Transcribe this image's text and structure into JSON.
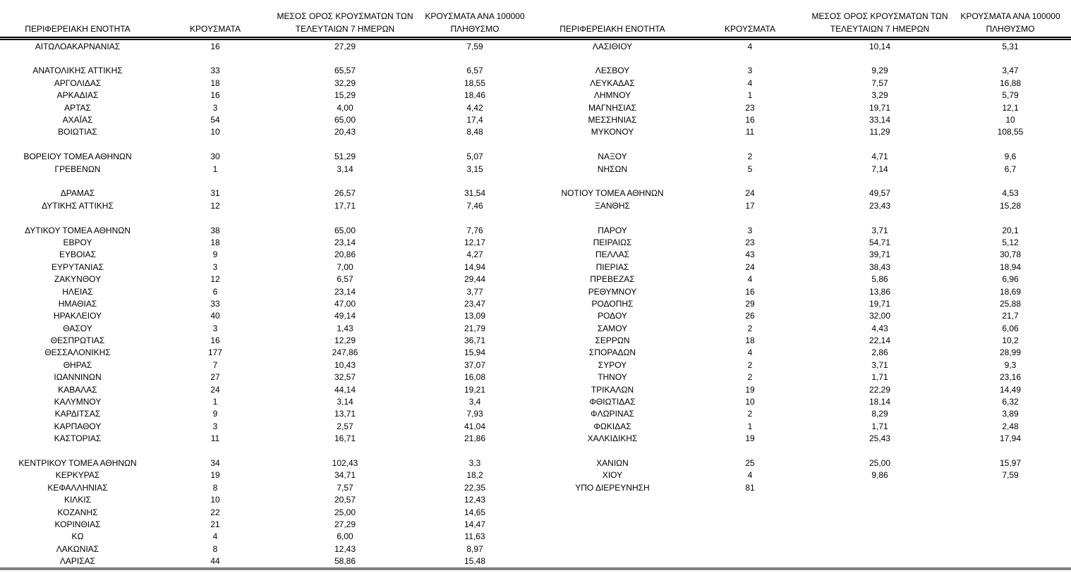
{
  "table": {
    "columns": [
      "ΠΕΡΙΦΕΡΕΙΑΚΗ ΕΝΟΤΗΤΑ",
      "ΚΡΟΥΣΜΑΤΑ",
      "ΜΕΣΟΣ ΟΡΟΣ ΚΡΟΥΣΜΑΤΩΝ ΤΩΝ ΤΕΛΕΥΤΑΙΩΝ 7 ΗΜΕΡΩΝ",
      "ΚΡΟΥΣΜΑΤΑ ΑΝΑ 100000 ΠΛΗΘΥΣΜΟ"
    ],
    "rows": [
      [
        "ΑΙΤΩΛΟΑΚΑΡΝΑΝΙΑΣ",
        "16",
        "27,29",
        "7,59",
        "ΛΑΣΙΘΙΟΥ",
        "4",
        "10,14",
        "5,31"
      ],
      [
        "",
        "",
        "",
        "",
        "",
        "",
        "",
        ""
      ],
      [
        "ΑΝΑΤΟΛΙΚΗΣ ΑΤΤΙΚΗΣ",
        "33",
        "65,57",
        "6,57",
        "ΛΕΣΒΟΥ",
        "3",
        "9,29",
        "3,47"
      ],
      [
        "ΑΡΓΟΛΙΔΑΣ",
        "18",
        "32,29",
        "18,55",
        "ΛΕΥΚΑΔΑΣ",
        "4",
        "7,57",
        "16,88"
      ],
      [
        "ΑΡΚΑΔΙΑΣ",
        "16",
        "15,29",
        "18,46",
        "ΛΗΜΝΟΥ",
        "1",
        "3,29",
        "5,79"
      ],
      [
        "ΑΡΤΑΣ",
        "3",
        "4,00",
        "4,42",
        "ΜΑΓΝΗΣΙΑΣ",
        "23",
        "19,71",
        "12,1"
      ],
      [
        "ΑΧΑΪΑΣ",
        "54",
        "65,00",
        "17,4",
        "ΜΕΣΣΗΝΙΑΣ",
        "16",
        "33,14",
        "10"
      ],
      [
        "ΒΟΙΩΤΙΑΣ",
        "10",
        "20,43",
        "8,48",
        "ΜΥΚΟΝΟΥ",
        "11",
        "11,29",
        "108,55"
      ],
      [
        "",
        "",
        "",
        "",
        "",
        "",
        "",
        ""
      ],
      [
        "ΒΟΡΕΙΟΥ ΤΟΜΕΑ ΑΘΗΝΩΝ",
        "30",
        "51,29",
        "5,07",
        "ΝΑΞΟΥ",
        "2",
        "4,71",
        "9,6"
      ],
      [
        "ΓΡΕΒΕΝΩΝ",
        "1",
        "3,14",
        "3,15",
        "ΝΗΣΩΝ",
        "5",
        "7,14",
        "6,7"
      ],
      [
        "",
        "",
        "",
        "",
        "",
        "",
        "",
        ""
      ],
      [
        "ΔΡΑΜΑΣ",
        "31",
        "26,57",
        "31,54",
        "ΝΟΤΙΟΥ ΤΟΜΕΑ ΑΘΗΝΩΝ",
        "24",
        "49,57",
        "4,53"
      ],
      [
        "ΔΥΤΙΚΗΣ ΑΤΤΙΚΗΣ",
        "12",
        "17,71",
        "7,46",
        "ΞΑΝΘΗΣ",
        "17",
        "23,43",
        "15,28"
      ],
      [
        "",
        "",
        "",
        "",
        "",
        "",
        "",
        ""
      ],
      [
        "ΔΥΤΙΚΟΥ ΤΟΜΕΑ ΑΘΗΝΩΝ",
        "38",
        "65,00",
        "7,76",
        "ΠΑΡΟΥ",
        "3",
        "3,71",
        "20,1"
      ],
      [
        "ΕΒΡΟΥ",
        "18",
        "23,14",
        "12,17",
        "ΠΕΙΡΑΙΩΣ",
        "23",
        "54,71",
        "5,12"
      ],
      [
        "ΕΥΒΟΙΑΣ",
        "9",
        "20,86",
        "4,27",
        "ΠΕΛΛΑΣ",
        "43",
        "39,71",
        "30,78"
      ],
      [
        "ΕΥΡΥΤΑΝΙΑΣ",
        "3",
        "7,00",
        "14,94",
        "ΠΙΕΡΙΑΣ",
        "24",
        "38,43",
        "18,94"
      ],
      [
        "ΖΑΚΥΝΘΟΥ",
        "12",
        "6,57",
        "29,44",
        "ΠΡΕΒΕΖΑΣ",
        "4",
        "5,86",
        "6,96"
      ],
      [
        "ΗΛΕΙΑΣ",
        "6",
        "23,14",
        "3,77",
        "ΡΕΘΥΜΝΟΥ",
        "16",
        "13,86",
        "18,69"
      ],
      [
        "ΗΜΑΘΙΑΣ",
        "33",
        "47,00",
        "23,47",
        "ΡΟΔΟΠΗΣ",
        "29",
        "19,71",
        "25,88"
      ],
      [
        "ΗΡΑΚΛΕΙΟΥ",
        "40",
        "49,14",
        "13,09",
        "ΡΟΔΟΥ",
        "26",
        "32,00",
        "21,7"
      ],
      [
        "ΘΑΣΟΥ",
        "3",
        "1,43",
        "21,79",
        "ΣΑΜΟΥ",
        "2",
        "4,43",
        "6,06"
      ],
      [
        "ΘΕΣΠΡΩΤΙΑΣ",
        "16",
        "12,29",
        "36,71",
        "ΣΕΡΡΩΝ",
        "18",
        "22,14",
        "10,2"
      ],
      [
        "ΘΕΣΣΑΛΟΝΙΚΗΣ",
        "177",
        "247,86",
        "15,94",
        "ΣΠΟΡΑΔΩΝ",
        "4",
        "2,86",
        "28,99"
      ],
      [
        "ΘΗΡΑΣ",
        "7",
        "10,43",
        "37,07",
        "ΣΥΡΟΥ",
        "2",
        "3,71",
        "9,3"
      ],
      [
        "ΙΩΑΝΝΙΝΩΝ",
        "27",
        "32,57",
        "16,08",
        "ΤΗΝΟΥ",
        "2",
        "1,71",
        "23,16"
      ],
      [
        "ΚΑΒΑΛΑΣ",
        "24",
        "44,14",
        "19,21",
        "ΤΡΙΚΑΛΩΝ",
        "19",
        "22,29",
        "14,49"
      ],
      [
        "ΚΑΛΥΜΝΟΥ",
        "1",
        "3,14",
        "3,4",
        "ΦΘΙΩΤΙΔΑΣ",
        "10",
        "18,14",
        "6,32"
      ],
      [
        "ΚΑΡΔΙΤΣΑΣ",
        "9",
        "13,71",
        "7,93",
        "ΦΛΩΡΙΝΑΣ",
        "2",
        "8,29",
        "3,89"
      ],
      [
        "ΚΑΡΠΑΘΟΥ",
        "3",
        "2,57",
        "41,04",
        "ΦΩΚΙΔΑΣ",
        "1",
        "1,71",
        "2,48"
      ],
      [
        "ΚΑΣΤΟΡΙΑΣ",
        "11",
        "16,71",
        "21,86",
        "ΧΑΛΚΙΔΙΚΗΣ",
        "19",
        "25,43",
        "17,94"
      ],
      [
        "",
        "",
        "",
        "",
        "",
        "",
        "",
        ""
      ],
      [
        "ΚΕΝΤΡΙΚΟΥ ΤΟΜΕΑ ΑΘΗΝΩΝ",
        "34",
        "102,43",
        "3,3",
        "ΧΑΝΙΩΝ",
        "25",
        "25,00",
        "15,97"
      ],
      [
        "ΚΕΡΚΥΡΑΣ",
        "19",
        "34,71",
        "18,2",
        "ΧΙΟΥ",
        "4",
        "9,86",
        "7,59"
      ],
      [
        "ΚΕΦΑΛΛΗΝΙΑΣ",
        "8",
        "7,57",
        "22,35",
        "ΥΠΟ ΔΙΕΡΕΥΝΗΣΗ",
        "81",
        "",
        ""
      ],
      [
        "ΚΙΛΚΙΣ",
        "10",
        "20,57",
        "12,43",
        "",
        "",
        "",
        ""
      ],
      [
        "ΚΟΖΑΝΗΣ",
        "22",
        "25,00",
        "14,65",
        "",
        "",
        "",
        ""
      ],
      [
        "ΚΟΡΙΝΘΙΑΣ",
        "21",
        "27,29",
        "14,47",
        "",
        "",
        "",
        ""
      ],
      [
        "ΚΩ",
        "4",
        "6,00",
        "11,63",
        "",
        "",
        "",
        ""
      ],
      [
        "ΛΑΚΩΝΙΑΣ",
        "8",
        "12,43",
        "8,97",
        "",
        "",
        "",
        ""
      ],
      [
        "ΛΑΡΙΣΑΣ",
        "44",
        "58,86",
        "15,48",
        "",
        "",
        "",
        ""
      ]
    ]
  },
  "colors": {
    "text": "#000000",
    "background": "#ffffff",
    "header_rule": "#000000",
    "bottom_rule": "#7f7f7f"
  }
}
